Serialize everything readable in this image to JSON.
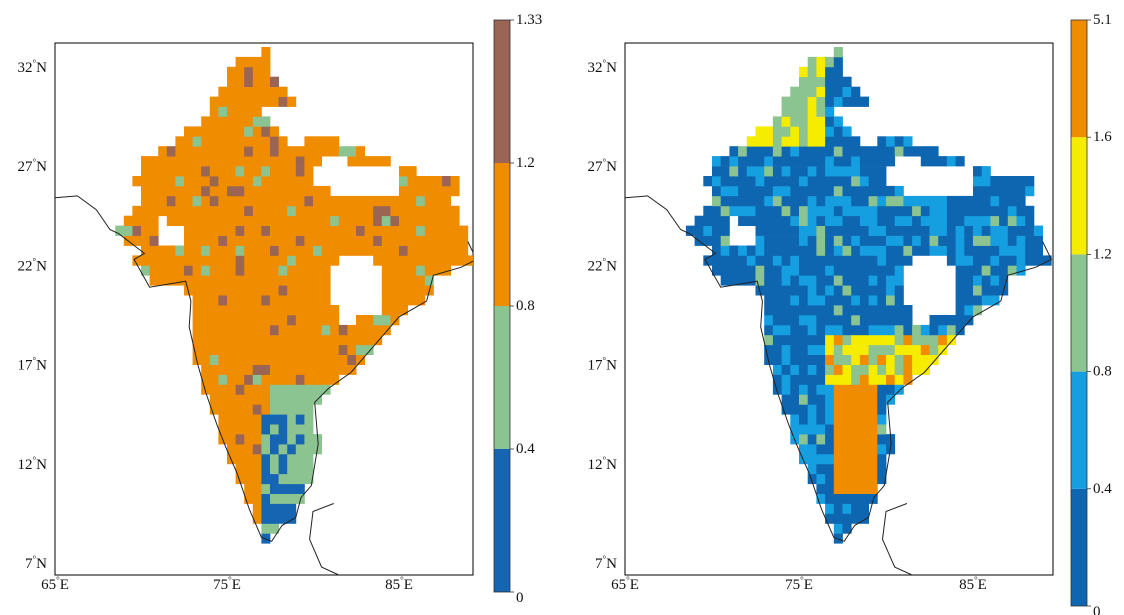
{
  "maps": [
    {
      "lat_labels": [
        "32",
        "27",
        "22",
        "17",
        "12",
        "7"
      ],
      "lon_labels": [
        "65",
        "75",
        "85"
      ],
      "lat_suffix": "N",
      "lon_suffix": "E",
      "colorbar": {
        "ticks": [
          "0",
          "0.4",
          "0.8",
          "1.2",
          "1.33"
        ],
        "colors": [
          "#1565b3",
          "#8cc491",
          "#f08c00",
          "#9a6554"
        ]
      },
      "dominant_color": "#f08c00"
    },
    {
      "lat_labels": [
        "32",
        "27",
        "22",
        "17",
        "12",
        "7"
      ],
      "lon_labels": [
        "65",
        "75",
        "85"
      ],
      "lat_suffix": "N",
      "lon_suffix": "E",
      "colorbar": {
        "ticks": [
          "0",
          "0.4",
          "0.8",
          "1.2",
          "1.6",
          "5.1"
        ],
        "colors": [
          "#0f66b0",
          "#159ee0",
          "#8cc491",
          "#f5ec00",
          "#f08c00"
        ]
      },
      "dominant_color": "#0f66b0"
    }
  ]
}
